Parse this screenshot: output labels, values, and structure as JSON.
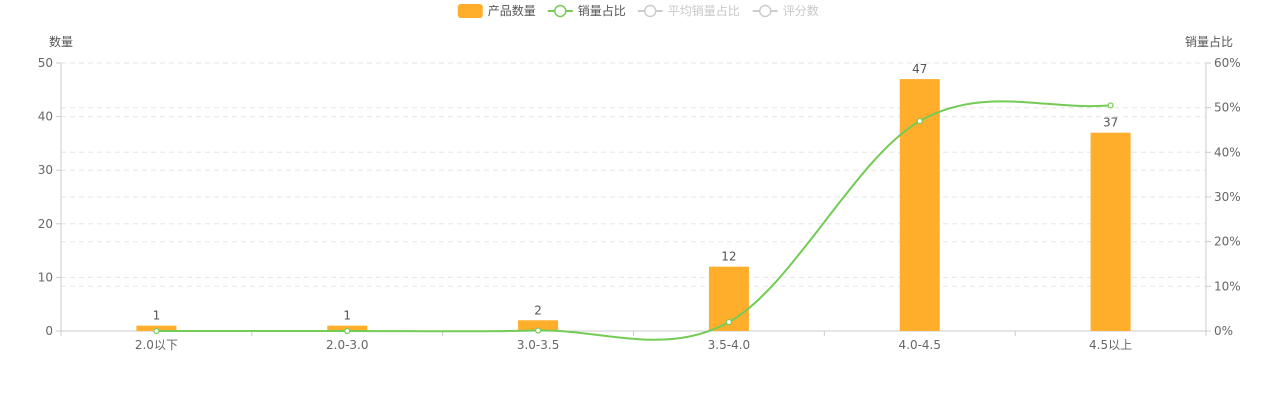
{
  "chart_data": {
    "type": "bar",
    "categories": [
      "2.0以下",
      "2.0-3.0",
      "3.0-3.5",
      "3.5-4.0",
      "4.0-4.5",
      "4.5以上"
    ],
    "legend": [
      {
        "name": "产品数量",
        "kind": "bar",
        "active": true
      },
      {
        "name": "销量占比",
        "kind": "line",
        "active": true
      },
      {
        "name": "平均销量占比",
        "kind": "line",
        "active": false
      },
      {
        "name": "评分数",
        "kind": "line",
        "active": false
      }
    ],
    "series": [
      {
        "name": "产品数量",
        "type": "bar",
        "axis": "left",
        "values": [
          1,
          1,
          2,
          12,
          47,
          37
        ],
        "color": "#ffae2c"
      },
      {
        "name": "销量占比",
        "type": "line",
        "axis": "right",
        "values": [
          0.0,
          0.0,
          0.1,
          2.0,
          47.0,
          50.5
        ],
        "color": "#74cb55"
      }
    ],
    "y_left": {
      "label": "数量",
      "min": 0,
      "max": 50,
      "ticks": [
        0,
        10,
        20,
        30,
        40,
        50
      ]
    },
    "y_right": {
      "label": "销量占比",
      "min": 0,
      "max": 60,
      "ticks": [
        "0%",
        "10%",
        "20%",
        "30%",
        "40%",
        "50%",
        "60%"
      ]
    },
    "grid": true,
    "legend_position": "top-center",
    "inactive_color": "#cccccc",
    "axis_color": "#cccccc",
    "grid_color": "#e6e6e6"
  }
}
